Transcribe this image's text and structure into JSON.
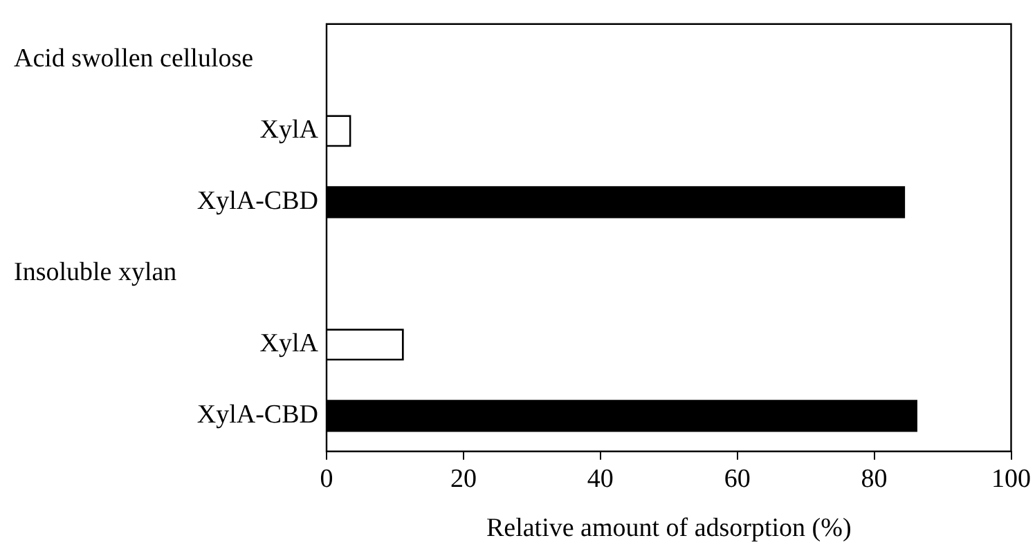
{
  "chart_data": {
    "type": "bar",
    "orientation": "horizontal",
    "xlabel": "Relative amount of adsorption (%)",
    "categories": [
      null,
      "XylA",
      "XylA-CBD",
      null,
      "XylA",
      "XylA-CBD"
    ],
    "values": [
      null,
      3.6,
      84.5,
      null,
      11.3,
      86.3
    ],
    "colors": [
      "#ffffff",
      "#ffffff",
      "#000000",
      "#ffffff",
      "#ffffff",
      "#000000"
    ],
    "xlim": [
      0,
      100
    ],
    "xticks": [
      0,
      20,
      40,
      60,
      80,
      100
    ],
    "grid": false,
    "legend": false,
    "annotations": [
      "Acid swollen cellulose",
      "Insoluble xylan"
    ]
  }
}
